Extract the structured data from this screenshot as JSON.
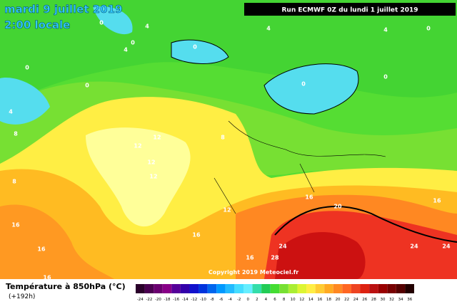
{
  "header": {
    "date": "mardi 9 juillet 2019",
    "time": "2:00 locale",
    "run": "Run ECMWF 0Z du lundi 1 juillet 2019"
  },
  "map": {
    "copyright": "Copyright 2019 Meteociel.fr",
    "contour_labels": [
      "0",
      "4",
      "0",
      "4",
      "0",
      "0",
      "4",
      "8",
      "0",
      "0",
      "4",
      "4",
      "0",
      "0",
      "8",
      "12",
      "12",
      "12",
      "12",
      "8",
      "12",
      "16",
      "20",
      "16",
      "24",
      "28",
      "16",
      "24",
      "24",
      "16",
      "16",
      "16",
      "16"
    ]
  },
  "legend": {
    "title": "Température à 850hPa (°C)",
    "subtitle": "(+192h)",
    "scale": [
      "-24",
      "-22",
      "-20",
      "-18",
      "-16",
      "-14",
      "-12",
      "-10",
      "-8",
      "-6",
      "-4",
      "-2",
      "0",
      "2",
      "4",
      "6",
      "8",
      "10",
      "12",
      "14",
      "16",
      "18",
      "20",
      "22",
      "24",
      "26",
      "28",
      "30",
      "32",
      "34",
      "36"
    ]
  }
}
